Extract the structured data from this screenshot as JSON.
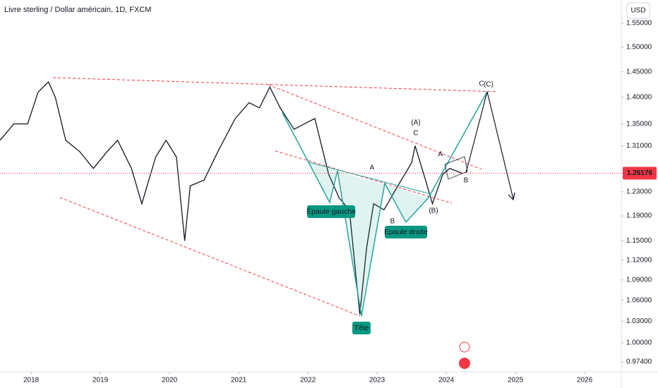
{
  "chart_data": {
    "type": "line",
    "title": "Livre sterling / Dollar américain, 1D, FXCM",
    "currency": "USD",
    "log_scale": true,
    "color": "#131722",
    "x": [
      2017.55,
      2017.75,
      2017.95,
      2018.1,
      2018.25,
      2018.35,
      2018.5,
      2018.7,
      2018.9,
      2019.1,
      2019.25,
      2019.45,
      2019.6,
      2019.8,
      2019.95,
      2020.1,
      2020.22,
      2020.3,
      2020.5,
      2020.7,
      2020.95,
      2021.15,
      2021.3,
      2021.45,
      2021.6,
      2021.8,
      2021.95,
      2022.1,
      2022.3,
      2022.45,
      2022.6,
      2022.72,
      2022.75,
      2022.85,
      2022.95,
      2023.1,
      2023.3,
      2023.5,
      2023.55,
      2023.7,
      2023.8,
      2023.95,
      2024.05,
      2024.23
    ],
    "values": [
      1.32,
      1.35,
      1.35,
      1.41,
      1.43,
      1.4,
      1.32,
      1.3,
      1.27,
      1.3,
      1.32,
      1.27,
      1.21,
      1.29,
      1.32,
      1.29,
      1.15,
      1.24,
      1.25,
      1.3,
      1.36,
      1.39,
      1.38,
      1.42,
      1.38,
      1.34,
      1.35,
      1.36,
      1.26,
      1.22,
      1.2,
      1.07,
      1.04,
      1.14,
      1.21,
      1.2,
      1.24,
      1.28,
      1.31,
      1.25,
      1.21,
      1.26,
      1.27,
      1.26176
    ],
    "last_price": 1.26176,
    "price_line_color": "#f23645",
    "xlim": [
      2017.55,
      2026.53
    ],
    "xticks": [
      2018,
      2019,
      2020,
      2021,
      2022,
      2023,
      2024,
      2025,
      2026
    ],
    "ylim": [
      0.961,
      1.6
    ],
    "yticks": [
      {
        "value": 0.974,
        "label": "0.97400"
      },
      {
        "value": 1.0,
        "label": "1.00000"
      },
      {
        "value": 1.03,
        "label": "1.03000"
      },
      {
        "value": 1.06,
        "label": "1.06000"
      },
      {
        "value": 1.09,
        "label": "1.09000"
      },
      {
        "value": 1.12,
        "label": "1.12000"
      },
      {
        "value": 1.15,
        "label": "1.15000"
      },
      {
        "value": 1.19,
        "label": "1.19000"
      },
      {
        "value": 1.23,
        "label": "1.23000"
      },
      {
        "value": 1.31,
        "label": "1.31000"
      },
      {
        "value": 1.35,
        "label": "1.35000"
      },
      {
        "value": 1.4,
        "label": "1.40000"
      },
      {
        "value": 1.45,
        "label": "1.45000"
      },
      {
        "value": 1.5,
        "label": "1.50000"
      },
      {
        "value": 1.55,
        "label": "1.55000"
      }
    ],
    "pattern_labels": [
      "Épaule gauche",
      "Epaule droite",
      "Tête"
    ],
    "wave_labels": [
      "A",
      "B",
      "C",
      "A",
      "B",
      "C",
      "(A)",
      "(B)",
      "(C)"
    ]
  }
}
